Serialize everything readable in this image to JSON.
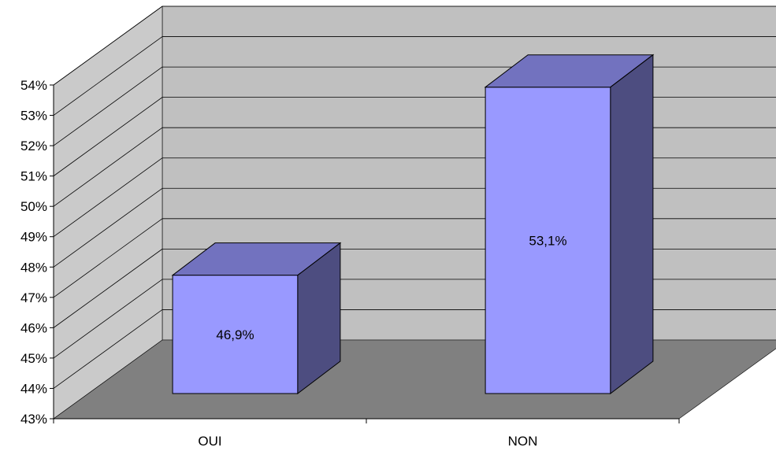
{
  "chart_data": {
    "type": "bar",
    "title": "",
    "xlabel": "",
    "ylabel": "",
    "categories": [
      "OUI",
      "NON"
    ],
    "values": [
      46.9,
      53.1
    ],
    "data_labels": [
      "46,9%",
      "53,1%"
    ],
    "ylim": [
      43,
      54
    ],
    "yticks": [
      43,
      44,
      45,
      46,
      47,
      48,
      49,
      50,
      51,
      52,
      53,
      54
    ],
    "ytick_labels": [
      "43%",
      "44%",
      "45%",
      "46%",
      "47%",
      "48%",
      "49%",
      "50%",
      "51%",
      "52%",
      "53%",
      "54%"
    ],
    "grid": true,
    "legend": "none",
    "style": "3d-column",
    "colors": {
      "bar_front": "#9999ff",
      "bar_top": "#7272bf",
      "bar_side": "#4d4d80",
      "back_wall": "#c0c0c0",
      "side_wall": "#cacaca",
      "floor": "#808080"
    }
  }
}
